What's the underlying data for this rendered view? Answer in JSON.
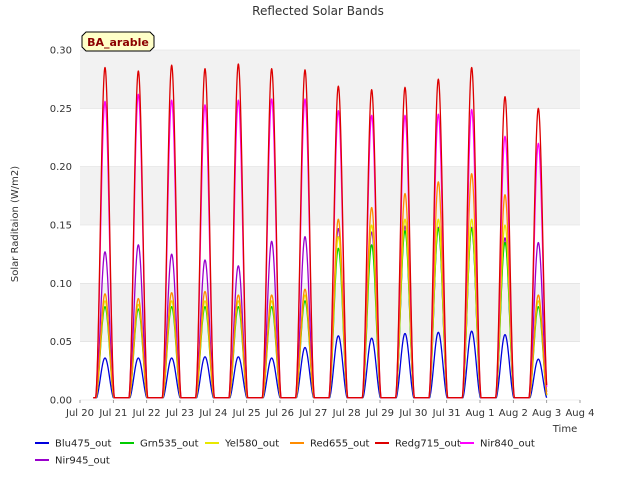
{
  "chart_data": {
    "type": "line",
    "title": "Reflected Solar Bands",
    "xlabel": "Time",
    "ylabel": "Solar Raditaion (W/m2)",
    "annotation": "BA_arable",
    "x_ticks": [
      "Jul 20",
      "Jul 21",
      "Jul 22",
      "Jul 23",
      "Jul 24",
      "Jul 25",
      "Jul 26",
      "Jul 27",
      "Jul 28",
      "Jul 29",
      "Jul 30",
      "Jul 31",
      "Aug 1",
      "Aug 2",
      "Aug 3",
      "Aug 4"
    ],
    "xlim": [
      0,
      15
    ],
    "ylim": [
      0,
      0.3
    ],
    "y_ticks": [
      0.0,
      0.05,
      0.1,
      0.15,
      0.2,
      0.25,
      0.3
    ],
    "y_tick_labels": [
      "0.00",
      "0.05",
      "0.10",
      "0.15",
      "0.20",
      "0.25",
      "0.30"
    ],
    "grid_bands": true,
    "legend_location": "bottom",
    "day_peak_positions": [
      0.75,
      1.75,
      2.75,
      3.75,
      4.75,
      5.75,
      6.75,
      7.75,
      8.75,
      9.75,
      10.75,
      11.75,
      12.75,
      13.75
    ],
    "series": [
      {
        "name": "Blu475_out",
        "color": "#0000dd",
        "daily_peaks": [
          0.036,
          0.036,
          0.036,
          0.037,
          0.037,
          0.036,
          0.045,
          0.055,
          0.053,
          0.057,
          0.058,
          0.059,
          0.056,
          0.035
        ]
      },
      {
        "name": "Grn535_out",
        "color": "#00cc00",
        "daily_peaks": [
          0.08,
          0.078,
          0.08,
          0.08,
          0.08,
          0.08,
          0.085,
          0.13,
          0.133,
          0.145,
          0.147,
          0.147,
          0.135,
          0.08
        ]
      },
      {
        "name": "Yel580_out",
        "color": "#e8e800",
        "daily_peaks": [
          0.085,
          0.082,
          0.085,
          0.085,
          0.085,
          0.085,
          0.09,
          0.14,
          0.15,
          0.155,
          0.155,
          0.155,
          0.15,
          0.085
        ]
      },
      {
        "name": "Red655_out",
        "color": "#ff8c00",
        "daily_peaks": [
          0.091,
          0.087,
          0.092,
          0.093,
          0.09,
          0.09,
          0.095,
          0.155,
          0.165,
          0.177,
          0.187,
          0.194,
          0.176,
          0.09
        ]
      },
      {
        "name": "Redg715_out",
        "color": "#dd0000",
        "daily_peaks": [
          0.285,
          0.282,
          0.287,
          0.284,
          0.288,
          0.284,
          0.283,
          0.269,
          0.266,
          0.268,
          0.275,
          0.285,
          0.26,
          0.25
        ]
      },
      {
        "name": "Nir840_out",
        "color": "#ff00ff",
        "daily_peaks": [
          0.256,
          0.262,
          0.257,
          0.253,
          0.257,
          0.258,
          0.258,
          0.248,
          0.244,
          0.244,
          0.245,
          0.249,
          0.226,
          0.22
        ]
      },
      {
        "name": "Nir945_out",
        "color": "#9900cc",
        "daily_peaks": [
          0.127,
          0.133,
          0.125,
          0.12,
          0.115,
          0.136,
          0.14,
          0.147,
          0.144,
          0.149,
          0.148,
          0.148,
          0.139,
          0.135
        ]
      }
    ]
  }
}
